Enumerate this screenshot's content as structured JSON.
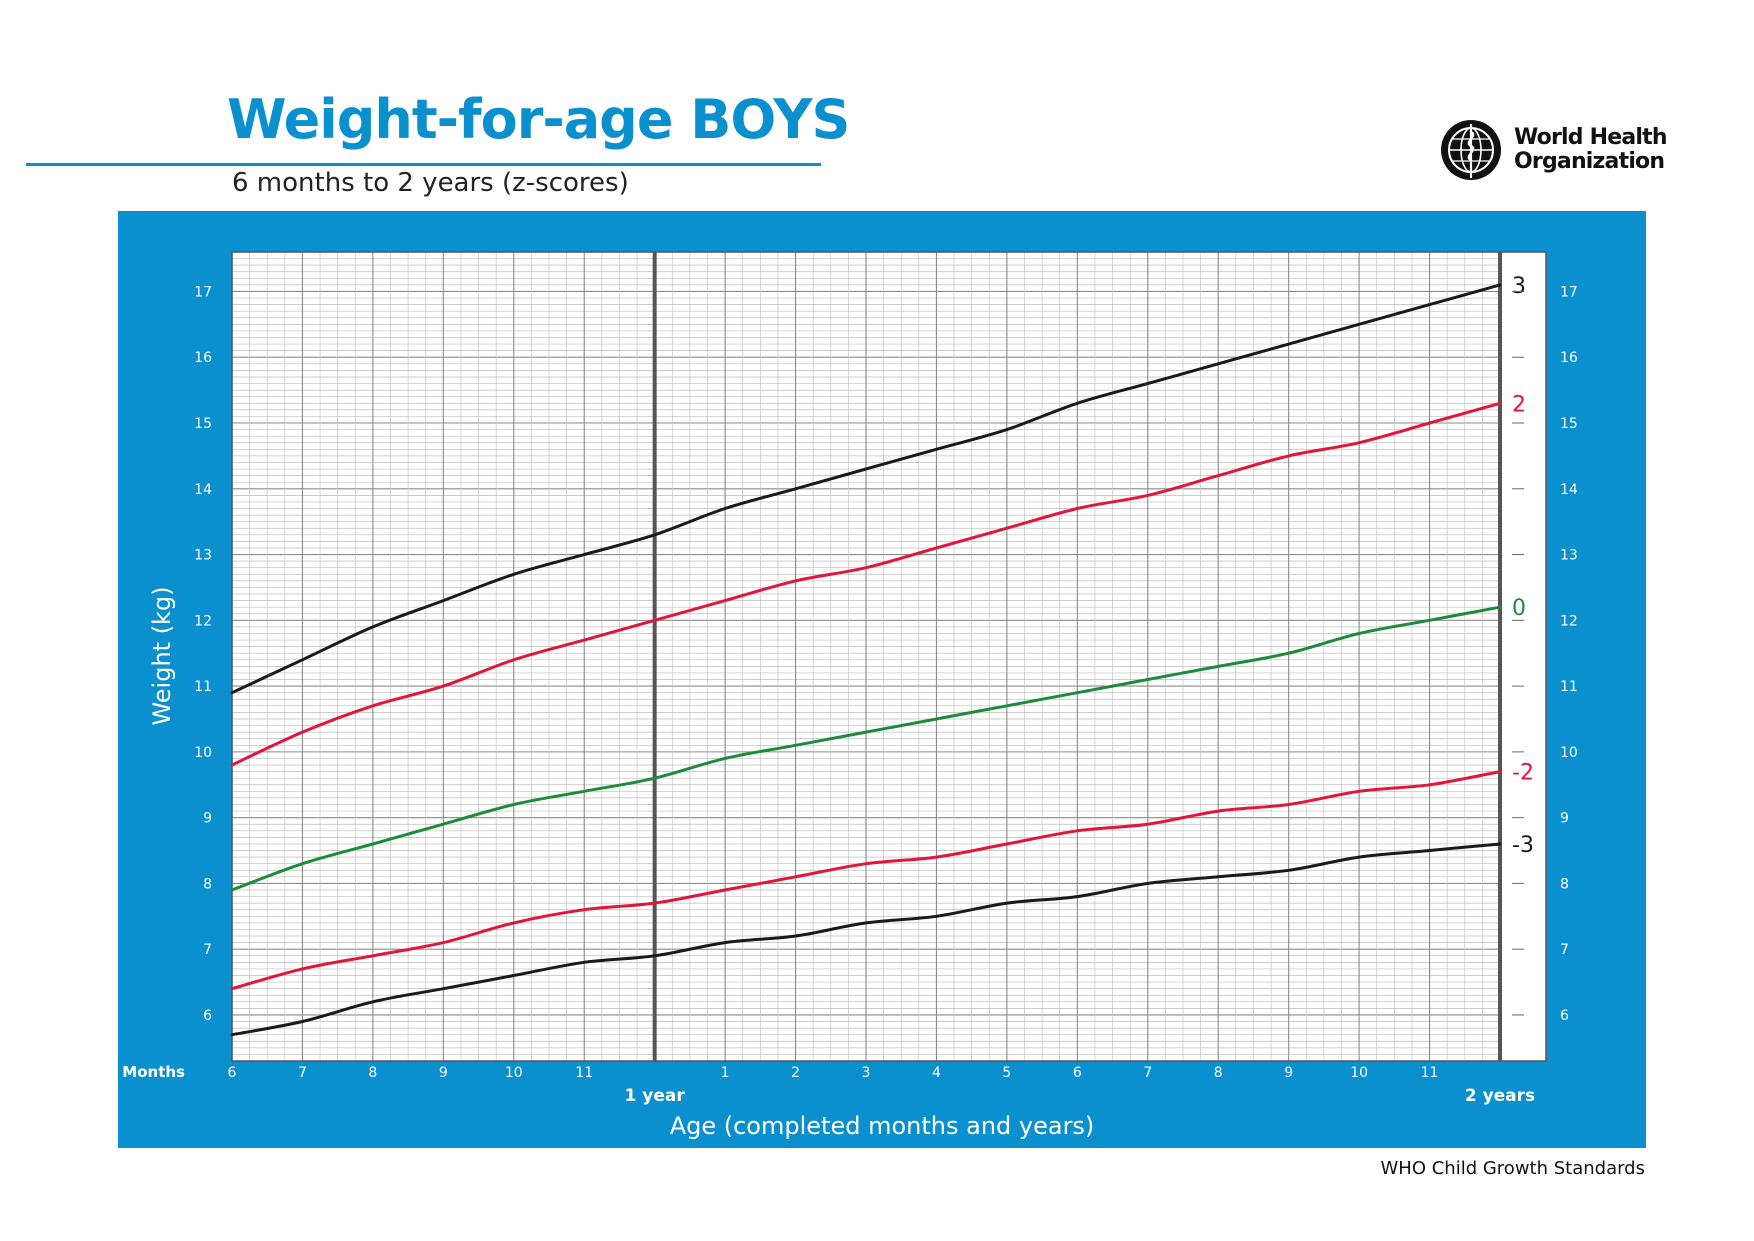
{
  "header": {
    "title": "Weight-for-age BOYS",
    "subtitle": "6 months to 2 years (z-scores)"
  },
  "logo": {
    "line1": "World Health",
    "line2": "Organization"
  },
  "footer": "WHO Child Growth Standards",
  "colors": {
    "panel_blue": "#0a90ce",
    "black_curve": "#1a1a1a",
    "red_curve": "#e2163a",
    "green_curve": "#1e8a3c"
  },
  "chart_data": {
    "type": "line",
    "title": "Weight-for-age BOYS",
    "subtitle": "6 months to 2 years (z-scores)",
    "xlabel": "Age (completed months and years)",
    "ylabel": "Weight (kg)",
    "x_axis_prefix": "Months",
    "x_ticks": [
      {
        "age": 6,
        "label": "6"
      },
      {
        "age": 7,
        "label": "7"
      },
      {
        "age": 8,
        "label": "8"
      },
      {
        "age": 9,
        "label": "9"
      },
      {
        "age": 10,
        "label": "10"
      },
      {
        "age": 11,
        "label": "11"
      },
      {
        "age": 13,
        "label": "1"
      },
      {
        "age": 14,
        "label": "2"
      },
      {
        "age": 15,
        "label": "3"
      },
      {
        "age": 16,
        "label": "4"
      },
      {
        "age": 17,
        "label": "5"
      },
      {
        "age": 18,
        "label": "6"
      },
      {
        "age": 19,
        "label": "7"
      },
      {
        "age": 20,
        "label": "8"
      },
      {
        "age": 21,
        "label": "9"
      },
      {
        "age": 22,
        "label": "10"
      },
      {
        "age": 23,
        "label": "11"
      }
    ],
    "year_markers": [
      {
        "age": 12,
        "label": "1 year"
      },
      {
        "age": 24,
        "label": "2 years"
      }
    ],
    "xlim": [
      6,
      24
    ],
    "ylim": [
      5.3,
      17.6
    ],
    "y_ticks": [
      6,
      7,
      8,
      9,
      10,
      11,
      12,
      13,
      14,
      15,
      16,
      17
    ],
    "grid": true,
    "x": [
      6,
      7,
      8,
      9,
      10,
      11,
      12,
      13,
      14,
      15,
      16,
      17,
      18,
      19,
      20,
      21,
      22,
      23,
      24
    ],
    "series": [
      {
        "name": "3",
        "color": "#1a1a1a",
        "values": [
          10.9,
          11.4,
          11.9,
          12.3,
          12.7,
          13.0,
          13.3,
          13.7,
          14.0,
          14.3,
          14.6,
          14.9,
          15.3,
          15.6,
          15.9,
          16.2,
          16.5,
          16.8,
          17.1
        ]
      },
      {
        "name": "2",
        "color": "#e2163a",
        "values": [
          9.8,
          10.3,
          10.7,
          11.0,
          11.4,
          11.7,
          12.0,
          12.3,
          12.6,
          12.8,
          13.1,
          13.4,
          13.7,
          13.9,
          14.2,
          14.5,
          14.7,
          15.0,
          15.3
        ]
      },
      {
        "name": "0",
        "color": "#1e8a3c",
        "values": [
          7.9,
          8.3,
          8.6,
          8.9,
          9.2,
          9.4,
          9.6,
          9.9,
          10.1,
          10.3,
          10.5,
          10.7,
          10.9,
          11.1,
          11.3,
          11.5,
          11.8,
          12.0,
          12.2
        ]
      },
      {
        "name": "-2",
        "color": "#e2163a",
        "values": [
          6.4,
          6.7,
          6.9,
          7.1,
          7.4,
          7.6,
          7.7,
          7.9,
          8.1,
          8.3,
          8.4,
          8.6,
          8.8,
          8.9,
          9.1,
          9.2,
          9.4,
          9.5,
          9.7
        ]
      },
      {
        "name": "-3",
        "color": "#1a1a1a",
        "values": [
          5.7,
          5.9,
          6.2,
          6.4,
          6.6,
          6.8,
          6.9,
          7.1,
          7.2,
          7.4,
          7.5,
          7.7,
          7.8,
          8.0,
          8.1,
          8.2,
          8.4,
          8.5,
          8.6
        ]
      }
    ]
  }
}
